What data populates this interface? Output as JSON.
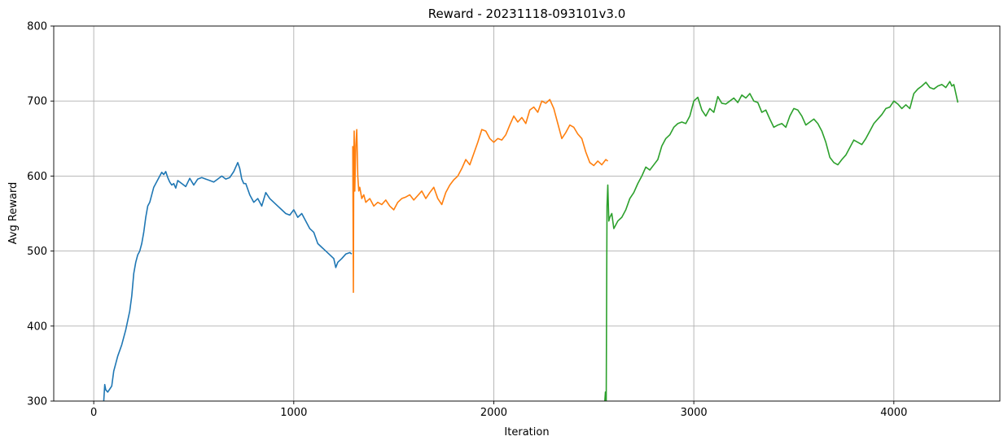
{
  "chart_data": {
    "type": "line",
    "title": "Reward - 20231118-093101v3.0",
    "xlabel": "Iteration",
    "ylabel": "Avg Reward",
    "xlim": [
      -200,
      4530
    ],
    "ylim": [
      300,
      800
    ],
    "xticks": [
      0,
      1000,
      2000,
      3000,
      4000
    ],
    "yticks": [
      300,
      400,
      500,
      600,
      700,
      800
    ],
    "grid": true,
    "series": [
      {
        "color": "#1f77b4",
        "x": [
          50,
          55,
          60,
          70,
          80,
          90,
          100,
          110,
          120,
          140,
          160,
          180,
          190,
          200,
          210,
          220,
          230,
          240,
          250,
          260,
          270,
          280,
          290,
          300,
          310,
          320,
          330,
          340,
          350,
          360,
          370,
          380,
          390,
          400,
          410,
          420,
          440,
          460,
          480,
          500,
          520,
          540,
          560,
          580,
          600,
          620,
          640,
          660,
          680,
          700,
          710,
          720,
          730,
          740,
          750,
          760,
          780,
          800,
          820,
          840,
          860,
          880,
          900,
          920,
          940,
          960,
          980,
          1000,
          1020,
          1040,
          1060,
          1080,
          1100,
          1120,
          1140,
          1160,
          1180,
          1200,
          1210,
          1220,
          1240,
          1260,
          1280,
          1290
        ],
        "values": [
          300,
          322,
          315,
          312,
          316,
          320,
          340,
          350,
          360,
          375,
          395,
          420,
          440,
          470,
          485,
          495,
          500,
          510,
          525,
          545,
          560,
          565,
          575,
          585,
          590,
          595,
          600,
          605,
          602,
          606,
          598,
          592,
          588,
          590,
          584,
          594,
          590,
          586,
          597,
          588,
          596,
          598,
          596,
          594,
          592,
          596,
          600,
          596,
          598,
          606,
          612,
          618,
          610,
          596,
          590,
          590,
          575,
          565,
          570,
          560,
          578,
          570,
          565,
          560,
          555,
          550,
          548,
          555,
          545,
          550,
          540,
          530,
          525,
          510,
          505,
          500,
          495,
          490,
          478,
          485,
          490,
          496,
          498,
          496
        ]
      },
      {
        "color": "#ff7f0e",
        "x": [
          1295,
          1298,
          1300,
          1302,
          1305,
          1310,
          1315,
          1320,
          1325,
          1330,
          1340,
          1350,
          1360,
          1380,
          1400,
          1420,
          1440,
          1460,
          1480,
          1500,
          1520,
          1540,
          1560,
          1580,
          1600,
          1620,
          1640,
          1660,
          1680,
          1700,
          1720,
          1740,
          1760,
          1780,
          1800,
          1820,
          1840,
          1860,
          1880,
          1900,
          1920,
          1940,
          1960,
          1980,
          2000,
          2020,
          2040,
          2060,
          2080,
          2100,
          2120,
          2140,
          2160,
          2180,
          2200,
          2220,
          2240,
          2260,
          2280,
          2300,
          2320,
          2340,
          2360,
          2380,
          2400,
          2420,
          2440,
          2460,
          2480,
          2500,
          2520,
          2540,
          2560,
          2570
        ],
        "values": [
          640,
          445,
          620,
          660,
          580,
          640,
          662,
          600,
          580,
          585,
          570,
          575,
          565,
          570,
          560,
          565,
          562,
          568,
          560,
          555,
          565,
          570,
          572,
          575,
          568,
          574,
          580,
          570,
          578,
          585,
          570,
          562,
          578,
          588,
          595,
          600,
          610,
          622,
          615,
          630,
          645,
          662,
          660,
          650,
          645,
          650,
          648,
          655,
          668,
          680,
          672,
          678,
          670,
          688,
          692,
          685,
          700,
          697,
          702,
          690,
          670,
          650,
          658,
          668,
          665,
          656,
          650,
          632,
          618,
          614,
          620,
          615,
          622,
          620
        ]
      },
      {
        "color": "#2ca02c",
        "x": [
          2555,
          2558,
          2562,
          2566,
          2570,
          2575,
          2580,
          2590,
          2600,
          2610,
          2620,
          2640,
          2660,
          2680,
          2700,
          2720,
          2740,
          2760,
          2780,
          2800,
          2820,
          2840,
          2860,
          2880,
          2900,
          2920,
          2940,
          2960,
          2980,
          3000,
          3020,
          3040,
          3060,
          3080,
          3100,
          3120,
          3140,
          3160,
          3180,
          3200,
          3220,
          3240,
          3260,
          3280,
          3300,
          3320,
          3340,
          3360,
          3380,
          3400,
          3420,
          3440,
          3460,
          3480,
          3500,
          3520,
          3540,
          3560,
          3580,
          3600,
          3620,
          3640,
          3660,
          3680,
          3700,
          3720,
          3740,
          3760,
          3780,
          3800,
          3820,
          3840,
          3860,
          3880,
          3900,
          3920,
          3940,
          3960,
          3980,
          4000,
          4020,
          4040,
          4060,
          4080,
          4100,
          4120,
          4140,
          4160,
          4180,
          4200,
          4220,
          4240,
          4260,
          4280,
          4290,
          4300,
          4310,
          4320
        ],
        "values": [
          300,
          312,
          300,
          560,
          588,
          540,
          545,
          550,
          530,
          535,
          540,
          545,
          555,
          570,
          578,
          590,
          600,
          612,
          608,
          615,
          622,
          640,
          650,
          655,
          665,
          670,
          672,
          670,
          680,
          700,
          705,
          688,
          680,
          690,
          685,
          706,
          697,
          696,
          700,
          704,
          698,
          708,
          704,
          710,
          700,
          698,
          685,
          688,
          676,
          665,
          668,
          670,
          665,
          680,
          690,
          688,
          680,
          668,
          672,
          676,
          670,
          660,
          645,
          625,
          618,
          615,
          622,
          628,
          638,
          648,
          645,
          642,
          650,
          660,
          670,
          676,
          682,
          690,
          692,
          700,
          696,
          690,
          695,
          690,
          710,
          716,
          720,
          725,
          718,
          716,
          720,
          722,
          718,
          726,
          720,
          722,
          710,
          698
        ]
      }
    ]
  }
}
